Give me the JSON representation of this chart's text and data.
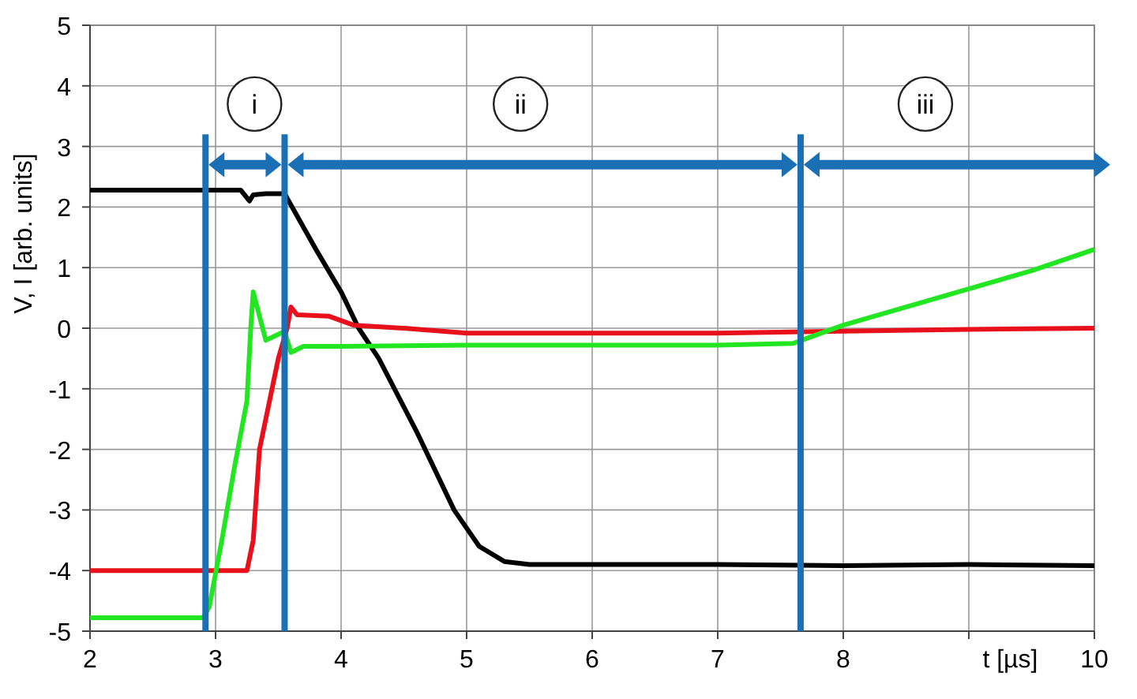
{
  "chart_data": {
    "type": "line",
    "xlabel": "t [µs]",
    "ylabel": "V, I [arb. units]",
    "xlim": [
      2,
      10
    ],
    "xticks": [
      2,
      3,
      4,
      5,
      6,
      7,
      8,
      {
        "value": 9,
        "label": null
      },
      10
    ],
    "ylim": [
      -5,
      5
    ],
    "yticks": [
      -5,
      -4,
      -3,
      -2,
      -1,
      0,
      1,
      2,
      3,
      4,
      5
    ],
    "grid": true,
    "marker": "none",
    "line_style": "solid",
    "series": [
      {
        "color": "#000000",
        "x": [
          2,
          2.5,
          3,
          3.2,
          3.27,
          3.3,
          3.4,
          3.55,
          3.8,
          4.0,
          4.14,
          4.3,
          4.6,
          4.9,
          5.1,
          5.3,
          5.5,
          6,
          7,
          8,
          9,
          10
        ],
        "values": [
          2.28,
          2.28,
          2.28,
          2.28,
          2.1,
          2.2,
          2.22,
          2.22,
          1.3,
          0.6,
          0,
          -0.5,
          -1.7,
          -3.0,
          -3.6,
          -3.85,
          -3.9,
          -3.9,
          -3.9,
          -3.92,
          -3.9,
          -3.92
        ]
      },
      {
        "color": "#e8101a",
        "x": [
          2,
          3,
          3.25,
          3.3,
          3.35,
          3.42,
          3.5,
          3.57,
          3.6,
          3.65,
          3.9,
          4.1,
          4.5,
          5,
          6,
          7,
          8,
          9,
          10
        ],
        "values": [
          -4,
          -4,
          -4,
          -3.5,
          -2,
          -1.3,
          -0.5,
          0,
          0.35,
          0.22,
          0.2,
          0.05,
          0,
          -0.08,
          -0.08,
          -0.08,
          -0.05,
          -0.02,
          0
        ]
      },
      {
        "color": "#22e622",
        "x": [
          2,
          2.9,
          2.95,
          3.05,
          3.15,
          3.25,
          3.28,
          3.3,
          3.35,
          3.4,
          3.5,
          3.55,
          3.6,
          3.7,
          4,
          5,
          6,
          7,
          7.6,
          7.8,
          8,
          8.5,
          9,
          9.5,
          10
        ],
        "values": [
          -4.78,
          -4.78,
          -4.6,
          -3.5,
          -2.3,
          -1.2,
          0,
          0.6,
          0.2,
          -0.2,
          -0.1,
          -0.05,
          -0.4,
          -0.3,
          -0.3,
          -0.28,
          -0.28,
          -0.28,
          -0.25,
          -0.1,
          0.05,
          0.35,
          0.65,
          0.95,
          1.3
        ]
      }
    ],
    "ref_lines": [
      {
        "axis": "x",
        "value": 2.92,
        "color": "#1a6fb5"
      },
      {
        "axis": "x",
        "value": 3.55,
        "color": "#1a6fb5"
      },
      {
        "axis": "x",
        "value": 7.66,
        "color": "#1a6fb5"
      }
    ],
    "annotations": [
      "i",
      "ii",
      "iii"
    ]
  }
}
